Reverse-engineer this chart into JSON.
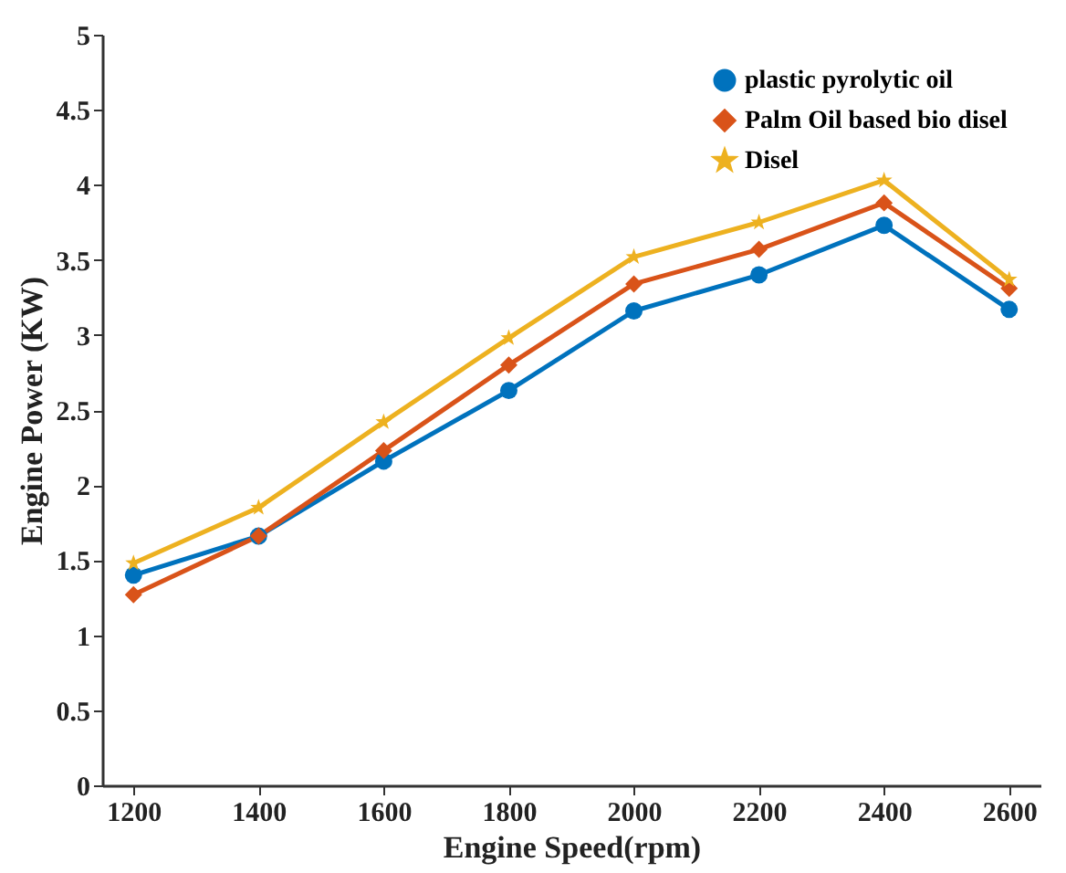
{
  "chart_data": {
    "type": "line",
    "xlabel": "Engine Speed(rpm)",
    "ylabel": "Engine Power (KW)",
    "x": [
      1200,
      1400,
      1600,
      1800,
      2000,
      2200,
      2400,
      2600
    ],
    "series": [
      {
        "name": "plastic pyrolytic oil",
        "color": "#0072bd",
        "marker": "circle",
        "values": [
          1.4,
          1.66,
          2.16,
          2.63,
          3.16,
          3.4,
          3.73,
          3.17
        ]
      },
      {
        "name": "Palm Oil based bio disel",
        "color": "#d95319",
        "marker": "diamond",
        "values": [
          1.27,
          1.66,
          2.23,
          2.8,
          3.34,
          3.57,
          3.88,
          3.31
        ]
      },
      {
        "name": "Disel",
        "color": "#edb120",
        "marker": "star",
        "values": [
          1.48,
          1.85,
          2.42,
          2.98,
          3.52,
          3.75,
          4.03,
          3.37
        ]
      }
    ],
    "xlim": [
      1150,
      2650
    ],
    "xticks": [
      1200,
      1400,
      1600,
      1800,
      2000,
      2200,
      2400,
      2600
    ],
    "ylim": [
      0,
      5
    ],
    "yticks": [
      0,
      0.5,
      1,
      1.5,
      2,
      2.5,
      3,
      3.5,
      4,
      4.5,
      5
    ],
    "grid": false,
    "legend": "top right",
    "line_style": "solid"
  }
}
